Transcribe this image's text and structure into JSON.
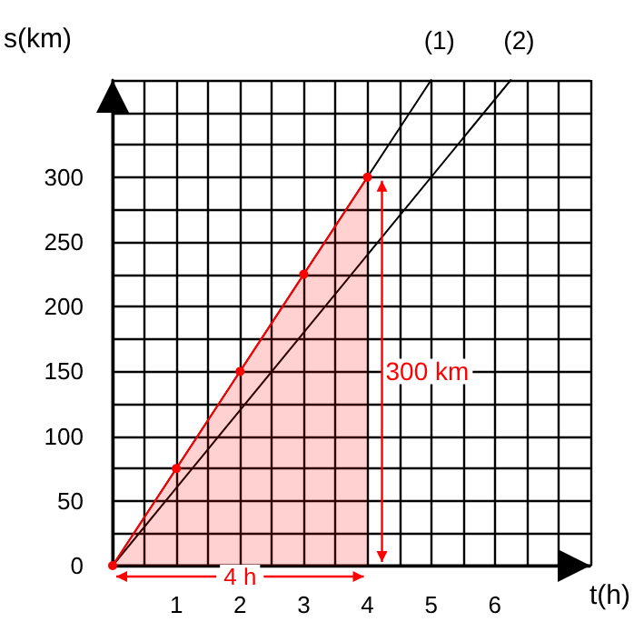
{
  "chart_data": {
    "type": "line",
    "xlabel": "t(h)",
    "ylabel": "s(km)",
    "series": [
      {
        "name": "(1)",
        "color": "#000000",
        "x": [
          0,
          5
        ],
        "values": [
          0,
          375
        ]
      },
      {
        "name": "(2)",
        "color": "#000000",
        "x": [
          0,
          6.25
        ],
        "values": [
          0,
          375
        ]
      },
      {
        "type": "area",
        "color": "#ff0000",
        "x": [
          0,
          1,
          2,
          3,
          4
        ],
        "values": [
          0,
          75,
          150,
          225,
          300
        ],
        "marker": "circle"
      }
    ],
    "xlim": [
      0,
      7.5
    ],
    "ylim": [
      0,
      375
    ],
    "xticks": [
      {
        "value": 0,
        "label": null
      },
      {
        "value": 0.5,
        "label": null
      },
      1,
      {
        "value": 1.5,
        "label": null
      },
      2,
      {
        "value": 2.5,
        "label": null
      },
      3,
      {
        "value": 3.5,
        "label": null
      },
      4,
      {
        "value": 4.5,
        "label": null
      },
      5,
      {
        "value": 5.5,
        "label": null
      },
      6,
      {
        "value": 6.5,
        "label": null
      },
      {
        "value": 7,
        "label": null
      },
      {
        "value": 7.5,
        "label": null
      }
    ],
    "yticks": [
      0,
      {
        "value": 25,
        "label": null
      },
      50,
      {
        "value": 75,
        "label": null
      },
      100,
      {
        "value": 125,
        "label": null
      },
      150,
      {
        "value": 175,
        "label": null
      },
      200,
      {
        "value": 225,
        "label": null
      },
      250,
      {
        "value": 275,
        "label": null
      },
      300,
      {
        "value": 325,
        "label": null
      },
      {
        "value": 350,
        "label": null
      },
      {
        "value": 375,
        "label": null
      }
    ],
    "grid": true,
    "legend": false,
    "marker": "none",
    "line_style": "solid",
    "annotations": [
      "300 km",
      "4 h"
    ]
  }
}
